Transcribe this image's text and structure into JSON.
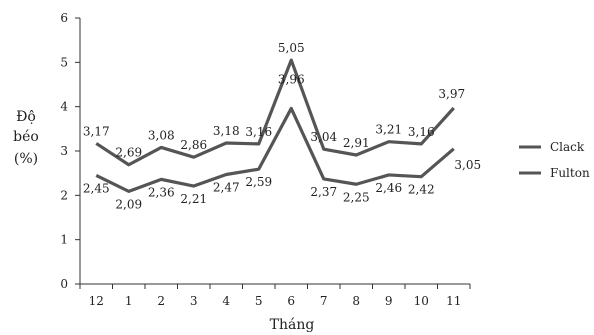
{
  "chart_data": {
    "type": "line",
    "categories": [
      "12",
      "1",
      "2",
      "3",
      "4",
      "5",
      "6",
      "7",
      "8",
      "9",
      "10",
      "11"
    ],
    "series": [
      {
        "name": "Clack",
        "values": [
          3.17,
          2.69,
          3.08,
          2.86,
          3.18,
          3.16,
          5.05,
          3.04,
          2.91,
          3.21,
          3.16,
          3.97
        ],
        "labels": [
          "3,17",
          "2,69",
          "3,08",
          "2,86",
          "3,18",
          "3,16",
          "5,05",
          "3,04",
          "2,91",
          "3,21",
          "3,16",
          "3,97"
        ],
        "color": "#555555"
      },
      {
        "name": "Fulton",
        "values": [
          2.45,
          2.09,
          2.36,
          2.21,
          2.47,
          2.59,
          3.96,
          2.37,
          2.25,
          2.46,
          2.42,
          3.05
        ],
        "labels": [
          "2,45",
          "2,09",
          "2,36",
          "2,21",
          "2,47",
          "2,59",
          "3,96",
          "2,37",
          "2,25",
          "2,46",
          "2,42",
          "3,05"
        ],
        "color": "#555555"
      }
    ],
    "title": "",
    "xlabel": "Tháng",
    "ylabel_lines": [
      "Độ",
      "béo",
      "(%)"
    ],
    "ylim": [
      0,
      6
    ],
    "yticks": [
      "0",
      "1",
      "2",
      "3",
      "4",
      "5",
      "6"
    ],
    "grid": false,
    "legend": "right"
  }
}
